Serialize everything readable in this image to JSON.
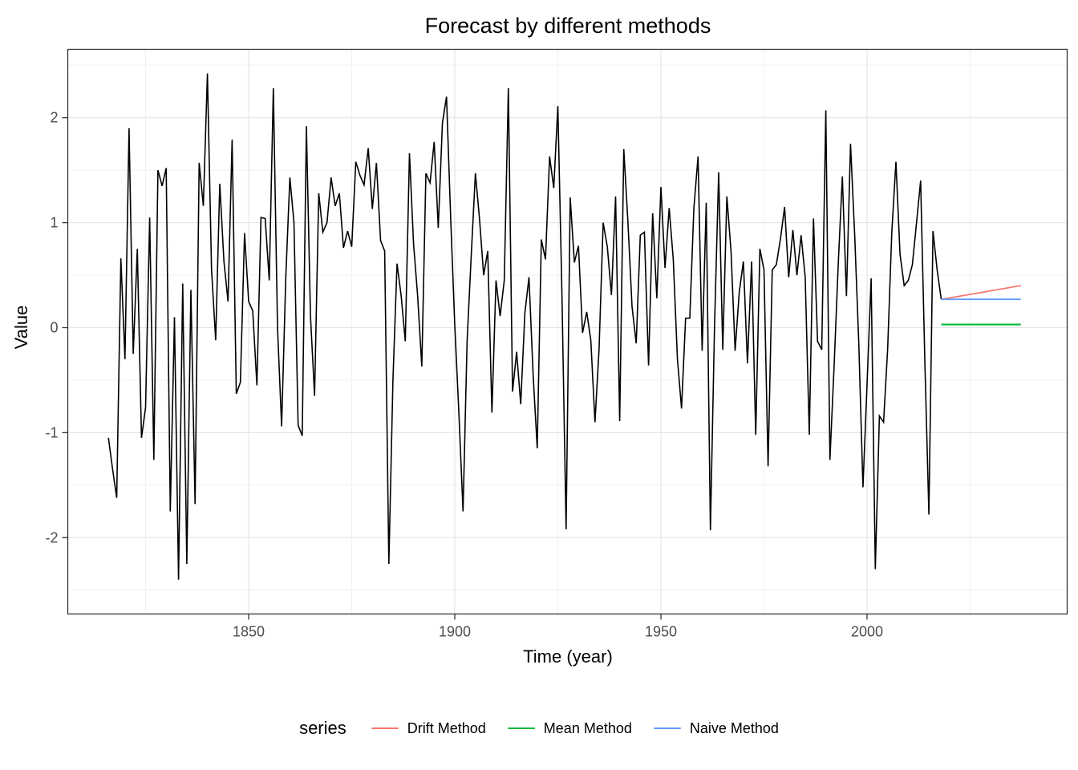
{
  "title": "Forecast by different methods",
  "axes": {
    "x": {
      "label": "Time (year)"
    },
    "y": {
      "label": "Value"
    }
  },
  "legend": {
    "title": "series",
    "entries": [
      {
        "label": "Drift Method",
        "color": "#F8766D"
      },
      {
        "label": "Mean Method",
        "color": "#00BA38"
      },
      {
        "label": "Naive Method",
        "color": "#619CFF"
      }
    ]
  },
  "chart_data": {
    "type": "line",
    "title": "Forecast by different methods",
    "xlabel": "Time (year)",
    "ylabel": "Value",
    "xlim": [
      1806.2,
      2048.5
    ],
    "ylim": [
      -2.73,
      2.65
    ],
    "grid": "on",
    "legend_position": "bottom",
    "x_ticks": [
      1850,
      1900,
      1950,
      2000
    ],
    "x_minor_ticks": [
      1825,
      1875,
      1925,
      1975,
      2025
    ],
    "y_ticks": [
      2,
      1,
      0,
      -1,
      -2
    ],
    "y_minor_ticks": [
      2.5,
      1.5,
      0.5,
      -0.5,
      -1.5,
      -2.5
    ],
    "series": [
      {
        "name": "observed-data",
        "color": "#000000",
        "width": 1.6,
        "x_start": 1816,
        "x_step": 1,
        "values": [
          -1.05,
          -1.35,
          -1.62,
          0.66,
          -0.3,
          1.9,
          -0.25,
          0.75,
          -1.05,
          -0.76,
          1.05,
          -1.26,
          1.5,
          1.35,
          1.52,
          -1.75,
          0.1,
          -2.4,
          0.42,
          -2.25,
          0.36,
          -1.68,
          1.57,
          1.16,
          2.42,
          0.56,
          -0.12,
          1.37,
          0.63,
          0.25,
          1.79,
          -0.63,
          -0.52,
          0.9,
          0.25,
          0.16,
          -0.55,
          1.05,
          1.04,
          0.45,
          2.28,
          0.0,
          -0.94,
          0.48,
          1.43,
          1.0,
          -0.93,
          -1.03,
          1.92,
          0.11,
          -0.65,
          1.28,
          0.91,
          1.0,
          1.43,
          1.16,
          1.28,
          0.76,
          0.92,
          0.77,
          1.58,
          1.45,
          1.36,
          1.71,
          1.13,
          1.57,
          0.83,
          0.73,
          -2.25,
          -0.5,
          0.61,
          0.3,
          -0.13,
          1.66,
          0.8,
          0.3,
          -0.37,
          1.47,
          1.38,
          1.77,
          0.95,
          1.95,
          2.2,
          1.04,
          0.02,
          -0.81,
          -1.75,
          -0.12,
          0.7,
          1.47,
          1.04,
          0.5,
          0.73,
          -0.81,
          0.45,
          0.11,
          0.45,
          2.28,
          -0.61,
          -0.23,
          -0.73,
          0.14,
          0.48,
          -0.45,
          -1.15,
          0.84,
          0.65,
          1.63,
          1.33,
          2.11,
          0.32,
          -1.92,
          1.24,
          0.62,
          0.78,
          -0.05,
          0.15,
          -0.12,
          -0.9,
          -0.2,
          1.0,
          0.77,
          0.31,
          1.25,
          -0.89,
          1.7,
          1.0,
          0.2,
          -0.15,
          0.88,
          0.91,
          -0.36,
          1.09,
          0.28,
          1.34,
          0.57,
          1.14,
          0.65,
          -0.3,
          -0.77,
          0.09,
          0.09,
          1.14,
          1.63,
          -0.22,
          1.19,
          -1.93,
          0.0,
          1.48,
          -0.21,
          1.25,
          0.73,
          -0.22,
          0.34,
          0.63,
          -0.34,
          0.63,
          -1.02,
          0.75,
          0.55,
          -1.32,
          0.55,
          0.6,
          0.85,
          1.15,
          0.48,
          0.93,
          0.5,
          0.88,
          0.48,
          -1.02,
          1.04,
          -0.13,
          -0.21,
          2.07,
          -1.26,
          -0.37,
          0.59,
          1.44,
          0.3,
          1.75,
          0.88,
          -0.15,
          -1.52,
          -0.54,
          0.47,
          -2.3,
          -0.84,
          -0.9,
          -0.2,
          0.9,
          1.58,
          0.7,
          0.4,
          0.45,
          0.6,
          1.0,
          1.4,
          -0.3,
          -1.78,
          0.92,
          0.55,
          0.27
        ]
      },
      {
        "name": "Drift Method",
        "color": "#F8766D",
        "width": 1.8,
        "x": [
          2018,
          2037.3
        ],
        "values": [
          0.27,
          0.4
        ]
      },
      {
        "name": "Mean Method",
        "color": "#00BA38",
        "width": 2.1,
        "x": [
          2018,
          2037.3
        ],
        "values": [
          0.03,
          0.03
        ]
      },
      {
        "name": "Naive Method",
        "color": "#619CFF",
        "width": 1.8,
        "x": [
          2018,
          2037.3
        ],
        "values": [
          0.27,
          0.27
        ]
      }
    ]
  }
}
